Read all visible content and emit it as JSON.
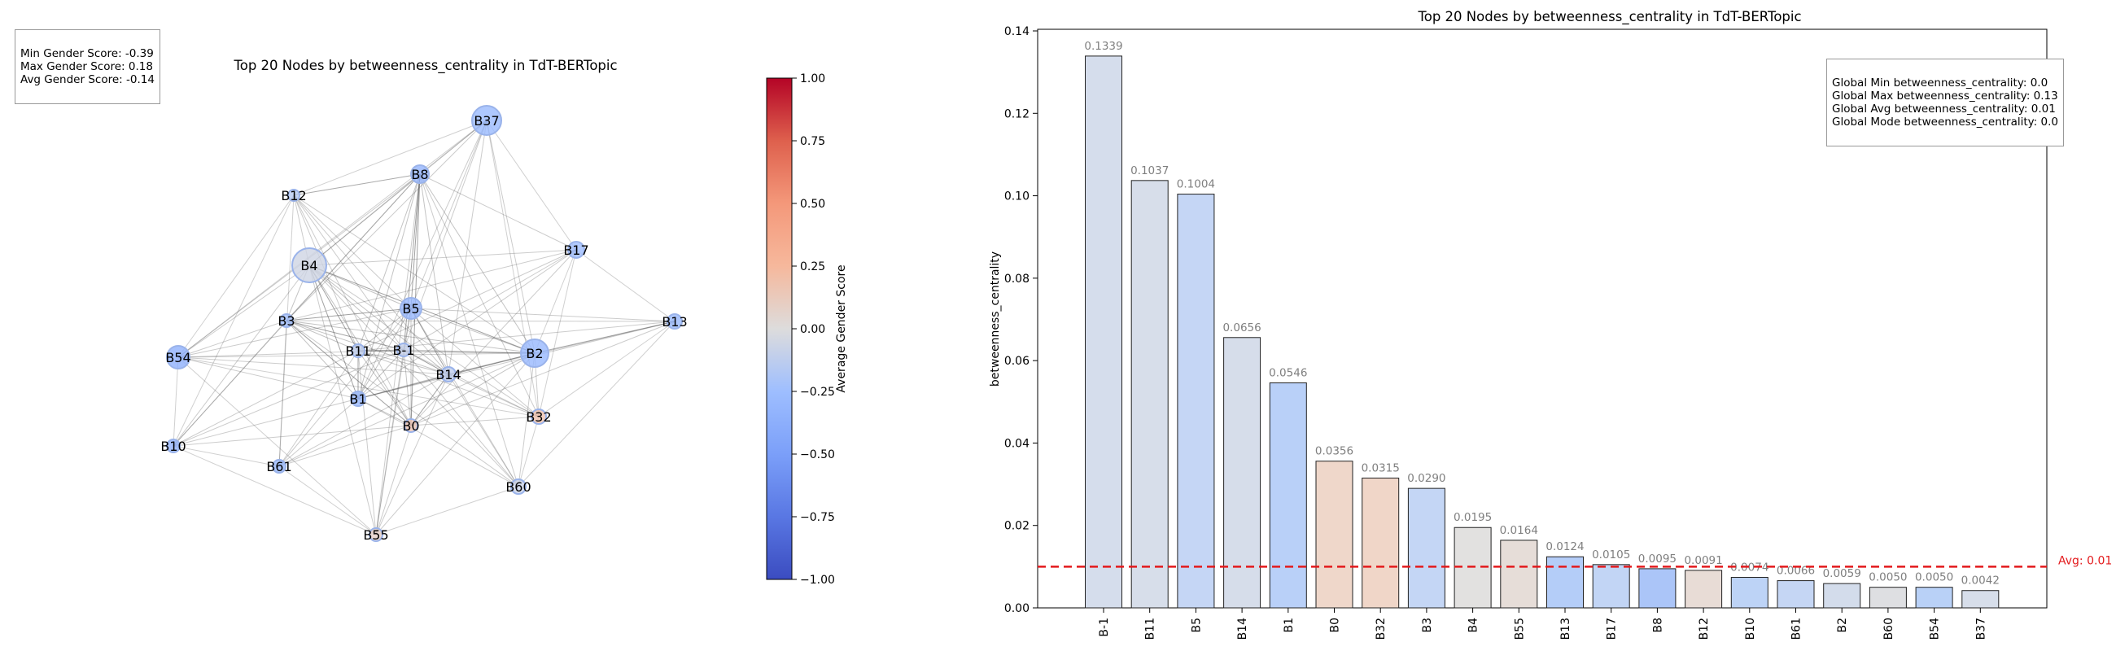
{
  "chart_data": [
    {
      "type": "network",
      "title": "Top 20 Nodes by betweenness_centrality in TdT-BERTopic",
      "stats": [
        "Min Gender Score: -0.39",
        "Max Gender Score: 0.18",
        "Avg Gender Score: -0.14"
      ],
      "colorbar": {
        "label": "Average Gender Score",
        "range": [
          -1.0,
          1.0
        ],
        "ticks": [
          "1.00",
          "0.75",
          "0.50",
          "0.25",
          "0.00",
          "−0.25",
          "−0.50",
          "−0.75",
          "−1.00"
        ]
      },
      "nodes": [
        {
          "id": "B37",
          "score": -0.28
        },
        {
          "id": "B8",
          "score": -0.33
        },
        {
          "id": "B12",
          "score": -0.15
        },
        {
          "id": "B17",
          "score": -0.26
        },
        {
          "id": "B4",
          "score": -0.06
        },
        {
          "id": "B5",
          "score": -0.3
        },
        {
          "id": "B3",
          "score": -0.24
        },
        {
          "id": "B13",
          "score": -0.29
        },
        {
          "id": "B54",
          "score": -0.36
        },
        {
          "id": "B11",
          "score": -0.12
        },
        {
          "id": "B-1",
          "score": -0.1
        },
        {
          "id": "B2",
          "score": -0.3
        },
        {
          "id": "B14",
          "score": -0.12
        },
        {
          "id": "B1",
          "score": -0.3
        },
        {
          "id": "B32",
          "score": 0.18
        },
        {
          "id": "B0",
          "score": 0.15
        },
        {
          "id": "B10",
          "score": -0.33
        },
        {
          "id": "B61",
          "score": -0.28
        },
        {
          "id": "B60",
          "score": -0.08
        },
        {
          "id": "B55",
          "score": 0.08
        }
      ]
    },
    {
      "type": "bar",
      "title": "Top 20 Nodes by betweenness_centrality in TdT-BERTopic",
      "ylabel": "betweenness_centrality",
      "ylim": [
        0,
        0.14
      ],
      "yticks": [
        "0.00",
        "0.02",
        "0.04",
        "0.06",
        "0.08",
        "0.10",
        "0.12",
        "0.14"
      ],
      "categories": [
        "B-1",
        "B11",
        "B5",
        "B14",
        "B1",
        "B0",
        "B32",
        "B3",
        "B4",
        "B55",
        "B13",
        "B17",
        "B8",
        "B12",
        "B10",
        "B61",
        "B2",
        "B60",
        "B54",
        "B37"
      ],
      "values": [
        0.1339,
        0.1037,
        0.1004,
        0.0656,
        0.0546,
        0.0356,
        0.0315,
        0.029,
        0.0195,
        0.0164,
        0.0124,
        0.0105,
        0.0095,
        0.0091,
        0.0074,
        0.0066,
        0.0059,
        0.005,
        0.005,
        0.0042
      ],
      "value_labels": [
        "0.1339",
        "0.1037",
        "0.1004",
        "0.0656",
        "0.0546",
        "0.0356",
        "0.0315",
        "0.0290",
        "0.0195",
        "0.0164",
        "0.0124",
        "0.0105",
        "0.0095",
        "0.0091",
        "0.0074",
        "0.0066",
        "0.0059",
        "0.0050",
        "0.0050",
        "0.0042"
      ],
      "bar_colors": [
        "#d5ddec",
        "#d7deea",
        "#c5d6f5",
        "#d6ddea",
        "#b9d0f8",
        "#efd7ca",
        "#f0d6c8",
        "#c4d6f5",
        "#e2e1e0",
        "#e6ddd8",
        "#b4cdf8",
        "#c2d5f5",
        "#abc5f8",
        "#e8dcd6",
        "#bdd3f6",
        "#c5d6f4",
        "#d3dceb",
        "#dedfe2",
        "#b9d1f7",
        "#d7deea"
      ],
      "average_line": {
        "value": 0.01,
        "label": "Avg: 0.01",
        "color": "#e31a1c"
      },
      "stats": [
        "Global Min betweenness_centrality: 0.0",
        "Global Max betweenness_centrality: 0.13",
        "Global Avg betweenness_centrality: 0.01",
        "Global Mode betweenness_centrality: 0.0"
      ]
    }
  ]
}
